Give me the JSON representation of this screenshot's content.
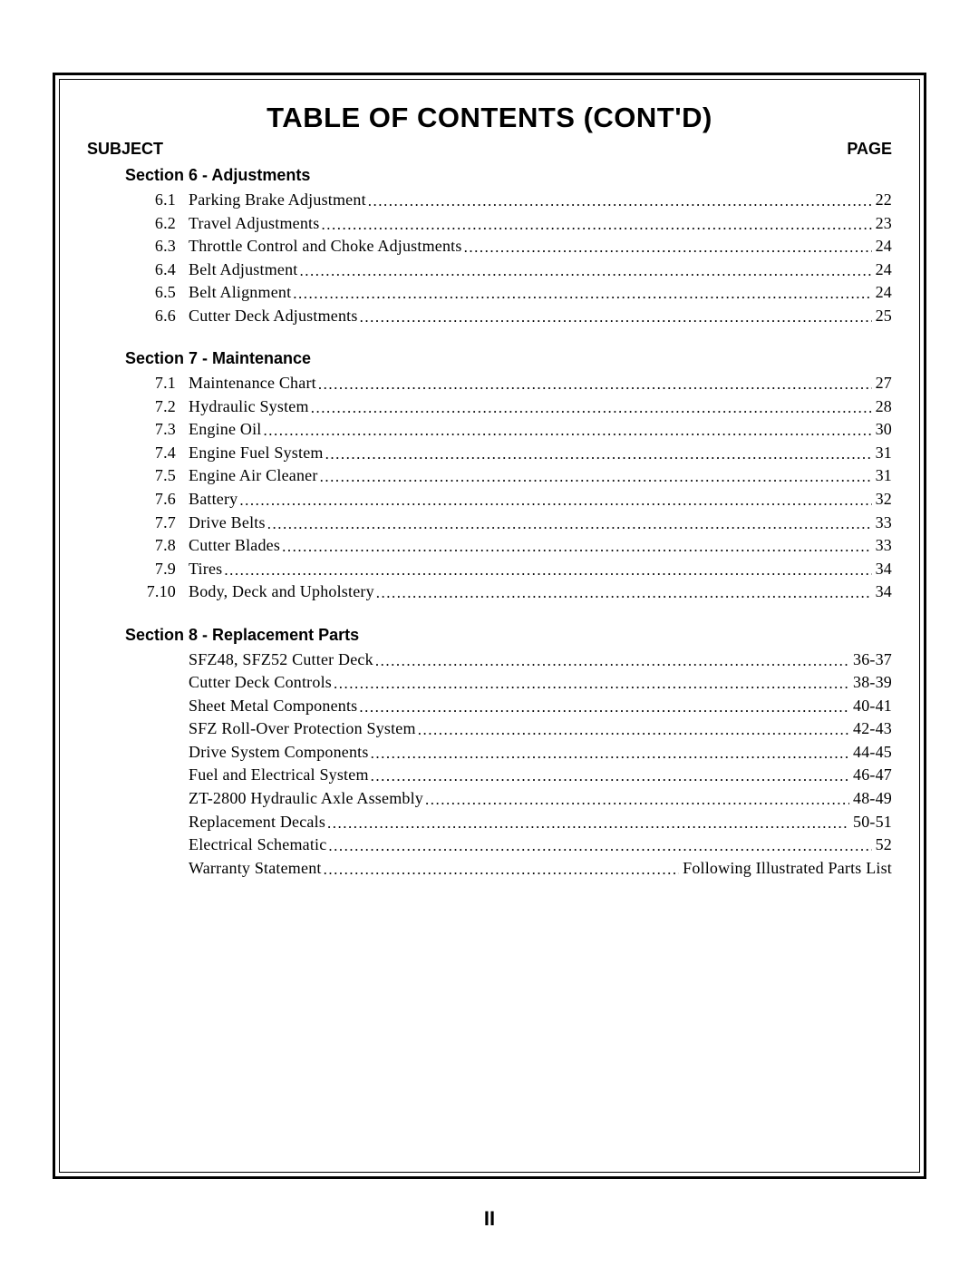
{
  "title": "TABLE OF CONTENTS (CONT'D)",
  "header_left": "SUBJECT",
  "header_right": "PAGE",
  "page_number": "II",
  "sections": [
    {
      "title": "Section 6 - Adjustments",
      "entries": [
        {
          "num": "6.1",
          "title": "Parking Brake Adjustment",
          "page": "22"
        },
        {
          "num": "6.2",
          "title": "Travel Adjustments",
          "page": "23"
        },
        {
          "num": "6.3",
          "title": "Throttle Control and Choke Adjustments",
          "page": "24"
        },
        {
          "num": "6.4",
          "title": "Belt Adjustment",
          "page": "24"
        },
        {
          "num": "6.5",
          "title": "Belt Alignment",
          "page": "24"
        },
        {
          "num": "6.6",
          "title": "Cutter Deck Adjustments",
          "page": "25"
        }
      ]
    },
    {
      "title": "Section 7 - Maintenance",
      "entries": [
        {
          "num": "7.1",
          "title": "Maintenance Chart",
          "page": "27"
        },
        {
          "num": "7.2",
          "title": "Hydraulic System",
          "page": "28"
        },
        {
          "num": "7.3",
          "title": "Engine Oil",
          "page": "30"
        },
        {
          "num": "7.4",
          "title": "Engine Fuel System",
          "page": "31"
        },
        {
          "num": "7.5",
          "title": "Engine Air Cleaner",
          "page": "31"
        },
        {
          "num": "7.6",
          "title": "Battery",
          "page": "32"
        },
        {
          "num": "7.7",
          "title": "Drive Belts",
          "page": "33"
        },
        {
          "num": "7.8",
          "title": "Cutter Blades",
          "page": "33"
        },
        {
          "num": "7.9",
          "title": "Tires",
          "page": "34"
        },
        {
          "num": "7.10",
          "title": "Body, Deck and Upholstery",
          "page": "34"
        }
      ]
    },
    {
      "title": "Section 8 - Replacement Parts",
      "entries": [
        {
          "num": "",
          "title": "SFZ48, SFZ52 Cutter Deck",
          "page": "36-37"
        },
        {
          "num": "",
          "title": "Cutter Deck Controls",
          "page": "38-39"
        },
        {
          "num": "",
          "title": "Sheet Metal Components",
          "page": "40-41"
        },
        {
          "num": "",
          "title": "SFZ Roll-Over Protection System",
          "page": "42-43"
        },
        {
          "num": "",
          "title": "Drive System Components",
          "page": "44-45"
        },
        {
          "num": "",
          "title": "Fuel and Electrical System",
          "page": "46-47"
        },
        {
          "num": "",
          "title": "ZT-2800 Hydraulic Axle Assembly",
          "page": "48-49"
        },
        {
          "num": "",
          "title": "Replacement Decals",
          "page": "50-51"
        },
        {
          "num": "",
          "title": "Electrical Schematic",
          "page": "52"
        },
        {
          "num": "",
          "title": "Warranty Statement",
          "page": "Following Illustrated Parts List"
        }
      ]
    }
  ]
}
